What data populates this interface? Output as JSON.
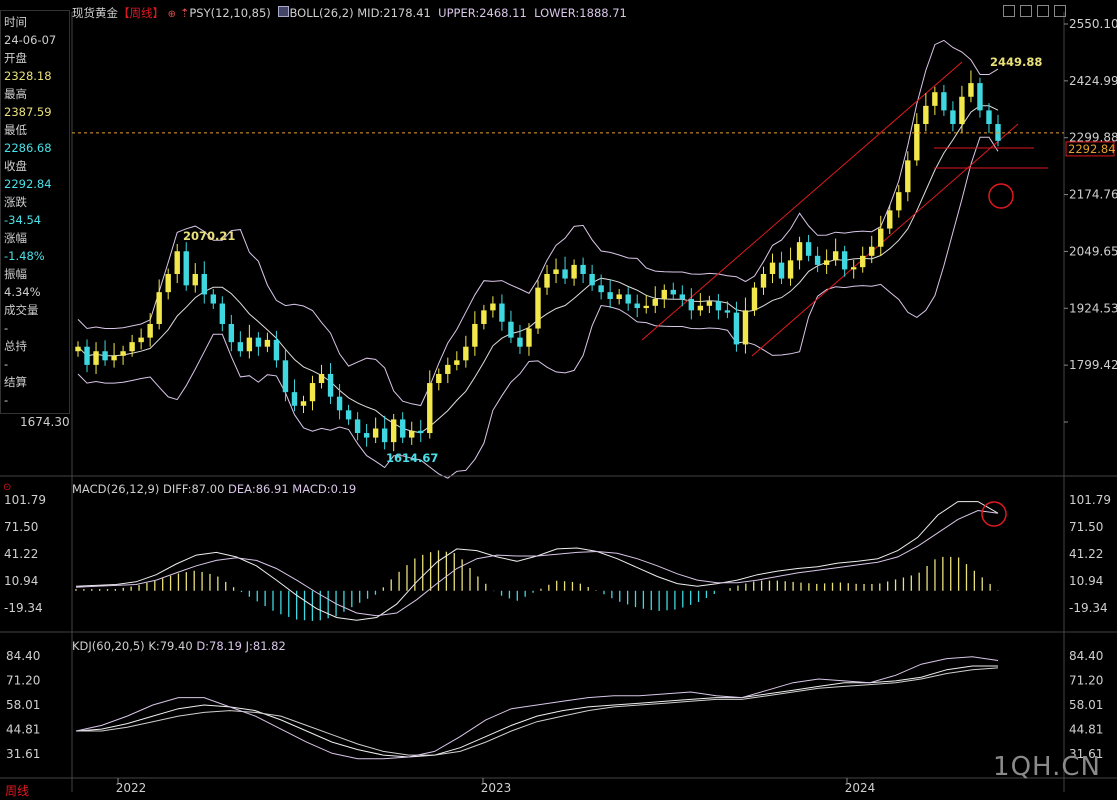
{
  "header": {
    "symbol": "现货黄金",
    "period_tag": "【周线】",
    "psy": "PSY(12,10,85)",
    "boll": "BOLL(26,2)",
    "mid": "MID:2178.41",
    "upper": "UPPER:2468.11",
    "lower": "LOWER:1888.71"
  },
  "sidebar": {
    "time_label": "时间",
    "time_value": "24-06-07",
    "open_label": "开盘",
    "open_value": "2328.18",
    "high_label": "最高",
    "high_value": "2387.59",
    "low_label": "最低",
    "low_value": "2286.68",
    "close_label": "收盘",
    "close_value": "2292.84",
    "change_label": "涨跌",
    "change_value": "-34.54",
    "pct_label": "涨幅",
    "pct_value": "-1.48%",
    "amp_label": "振幅",
    "amp_value": "4.34%",
    "vol_label": "成交量",
    "vol_value": "-",
    "oi_label": "总持",
    "oi_value": "-",
    "settle_label": "结算",
    "settle_value": "-"
  },
  "price_panel": {
    "y_ticks": [
      "2550.10",
      "2424.99",
      "2299.88",
      "2174.76",
      "2049.65",
      "1924.53",
      "1799.42",
      "1674.30"
    ],
    "last_price": "2292.84",
    "high_label": "2449.88",
    "peak2022_label": "2070.21",
    "low_label": "1614.67"
  },
  "macd_panel": {
    "title": "MACD(26,12,9)",
    "diff": "DIFF:87.00",
    "dea": "DEA:86.91",
    "macd": "MACD:0.19",
    "y_ticks": [
      "101.79",
      "71.50",
      "41.22",
      "10.94",
      "-19.34"
    ]
  },
  "kdj_panel": {
    "title": "KDJ(60,20,5)",
    "k": "K:79.40",
    "d": "D:78.19",
    "j": "J:81.82",
    "y_ticks": [
      "84.40",
      "71.20",
      "58.01",
      "44.81",
      "31.61"
    ]
  },
  "x_axis": {
    "period_label": "周线",
    "years": [
      "2022",
      "2023",
      "2024"
    ]
  },
  "watermark": "1QH.CN",
  "colors": {
    "up": "#f2e84c",
    "down": "#3fd8e0",
    "boll": "#d9c6e8",
    "channel": "#e0191f",
    "yellow_text": "#e8e07a",
    "macd_pos": "#e8e07a",
    "macd_neg": "#3fd8e0"
  },
  "chart_data": [
    {
      "type": "candlestick",
      "title": "现货黄金",
      "period": "weekly",
      "x": [
        "2022",
        "2023",
        "2024"
      ],
      "ylim": [
        1674.3,
        2550.1
      ],
      "close_path": [
        1840,
        1800,
        1830,
        1810,
        1820,
        1830,
        1850,
        1860,
        1890,
        1960,
        2000,
        2050,
        1975,
        2000,
        1955,
        1935,
        1890,
        1850,
        1830,
        1860,
        1840,
        1855,
        1810,
        1740,
        1710,
        1720,
        1760,
        1780,
        1730,
        1700,
        1680,
        1650,
        1640,
        1660,
        1630,
        1680,
        1640,
        1655,
        1650,
        1760,
        1780,
        1800,
        1810,
        1840,
        1890,
        1920,
        1935,
        1895,
        1860,
        1840,
        1880,
        1970,
        2000,
        2010,
        1990,
        2020,
        2000,
        1975,
        1960,
        1945,
        1955,
        1935,
        1925,
        1930,
        1945,
        1965,
        1955,
        1945,
        1920,
        1930,
        1940,
        1920,
        1915,
        1845,
        1920,
        1970,
        2000,
        2025,
        1990,
        2030,
        2070,
        2040,
        2020,
        2030,
        2050,
        2010,
        2015,
        2040,
        2060,
        2100,
        2140,
        2180,
        2250,
        2330,
        2370,
        2400,
        2360,
        2330,
        2390,
        2420,
        2360,
        2330,
        2293
      ],
      "annotations": {
        "high": 2449.88,
        "peak_2022": 2070.21,
        "low": 1614.67,
        "last": 2292.84
      },
      "boll": {
        "mid": 2178.41,
        "upper": 2468.11,
        "lower": 1888.71
      }
    },
    {
      "type": "bar+line",
      "title": "MACD(26,12,9)",
      "ylim": [
        -19.34,
        101.79
      ],
      "diff_path": [
        5,
        6,
        7,
        10,
        18,
        30,
        40,
        43,
        38,
        28,
        12,
        -5,
        -20,
        -30,
        -33,
        -30,
        -15,
        10,
        32,
        47,
        45,
        38,
        33,
        39,
        47,
        48,
        44,
        36,
        26,
        16,
        8,
        5,
        8,
        12,
        18,
        22,
        25,
        27,
        31,
        33,
        36,
        45,
        60,
        85,
        100,
        100,
        87
      ],
      "dea_path": [
        4,
        5,
        6,
        7,
        12,
        20,
        28,
        34,
        37,
        34,
        25,
        12,
        -2,
        -15,
        -25,
        -28,
        -25,
        -10,
        8,
        25,
        36,
        40,
        39,
        39,
        41,
        43,
        44,
        42,
        36,
        28,
        19,
        12,
        9,
        9,
        12,
        16,
        20,
        23,
        26,
        29,
        32,
        38,
        50,
        65,
        80,
        90,
        87
      ],
      "macd_path": [
        1,
        1,
        1,
        3,
        6,
        10,
        12,
        9,
        1,
        -6,
        -13,
        -17,
        -18,
        -15,
        -8,
        -2,
        10,
        20,
        24,
        22,
        9,
        -2,
        -6,
        0,
        6,
        5,
        0,
        -6,
        -10,
        -12,
        -11,
        -7,
        -1,
        3,
        6,
        6,
        5,
        4,
        5,
        4,
        4,
        7,
        10,
        20,
        20,
        10,
        0.19
      ],
      "diff": 87.0,
      "dea": 86.91,
      "macd": 0.19
    },
    {
      "type": "line",
      "title": "KDJ(60,20,5)",
      "ylim": [
        31.61,
        84.4
      ],
      "k_path": [
        44,
        45,
        48,
        52,
        56,
        58,
        57,
        55,
        50,
        44,
        38,
        34,
        31,
        30,
        31,
        35,
        41,
        47,
        52,
        55,
        57,
        58,
        59,
        60,
        61,
        62,
        62,
        64,
        66,
        68,
        70,
        70,
        71,
        73,
        77,
        79,
        79
      ],
      "d_path": [
        44,
        44,
        46,
        49,
        52,
        54,
        55,
        54,
        52,
        47,
        42,
        37,
        33,
        31,
        31,
        33,
        38,
        44,
        49,
        52,
        55,
        57,
        58,
        59,
        60,
        61,
        61,
        63,
        65,
        67,
        68,
        69,
        70,
        72,
        75,
        77,
        78
      ],
      "j_path": [
        44,
        47,
        52,
        58,
        62,
        62,
        57,
        52,
        45,
        38,
        32,
        29,
        29,
        30,
        33,
        41,
        50,
        56,
        58,
        60,
        62,
        63,
        63,
        64,
        65,
        63,
        62,
        66,
        70,
        72,
        71,
        70,
        74,
        80,
        83,
        84,
        82
      ],
      "k": 79.4,
      "d": 78.19,
      "j": 81.82
    }
  ]
}
